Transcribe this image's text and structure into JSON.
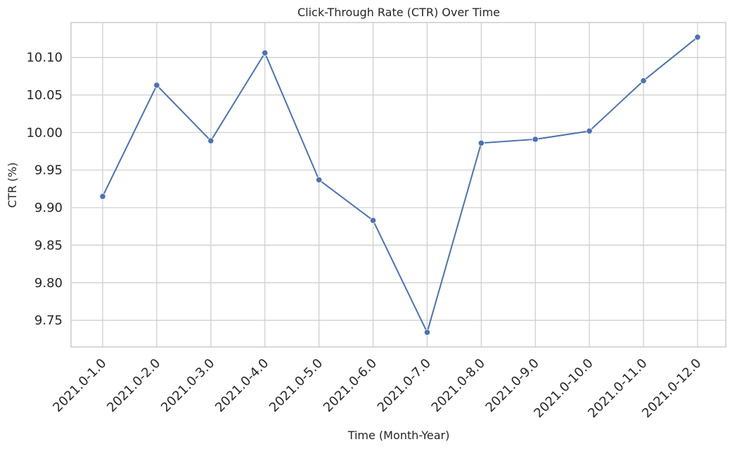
{
  "chart_data": {
    "type": "line",
    "title": "Click-Through Rate (CTR) Over Time",
    "xlabel": "Time (Month-Year)",
    "ylabel": "CTR (%)",
    "categories": [
      "2021.0-1.0",
      "2021.0-2.0",
      "2021.0-3.0",
      "2021.0-4.0",
      "2021.0-5.0",
      "2021.0-6.0",
      "2021.0-7.0",
      "2021.0-8.0",
      "2021.0-9.0",
      "2021.0-10.0",
      "2021.0-11.0",
      "2021.0-12.0"
    ],
    "series": [
      {
        "values": [
          9.915,
          10.063,
          9.989,
          10.106,
          9.937,
          9.883,
          9.734,
          9.986,
          9.991,
          10.002,
          10.069,
          10.127
        ]
      }
    ],
    "yticks": [
      "9.75",
      "9.80",
      "9.85",
      "9.90",
      "9.95",
      "10.00",
      "10.05",
      "10.10"
    ],
    "ylim": [
      9.7145,
      10.1465
    ],
    "grid": true,
    "legend": "none",
    "colors": {
      "line": "#4c72b0",
      "grid": "#cccccc",
      "text": "#262626"
    }
  }
}
